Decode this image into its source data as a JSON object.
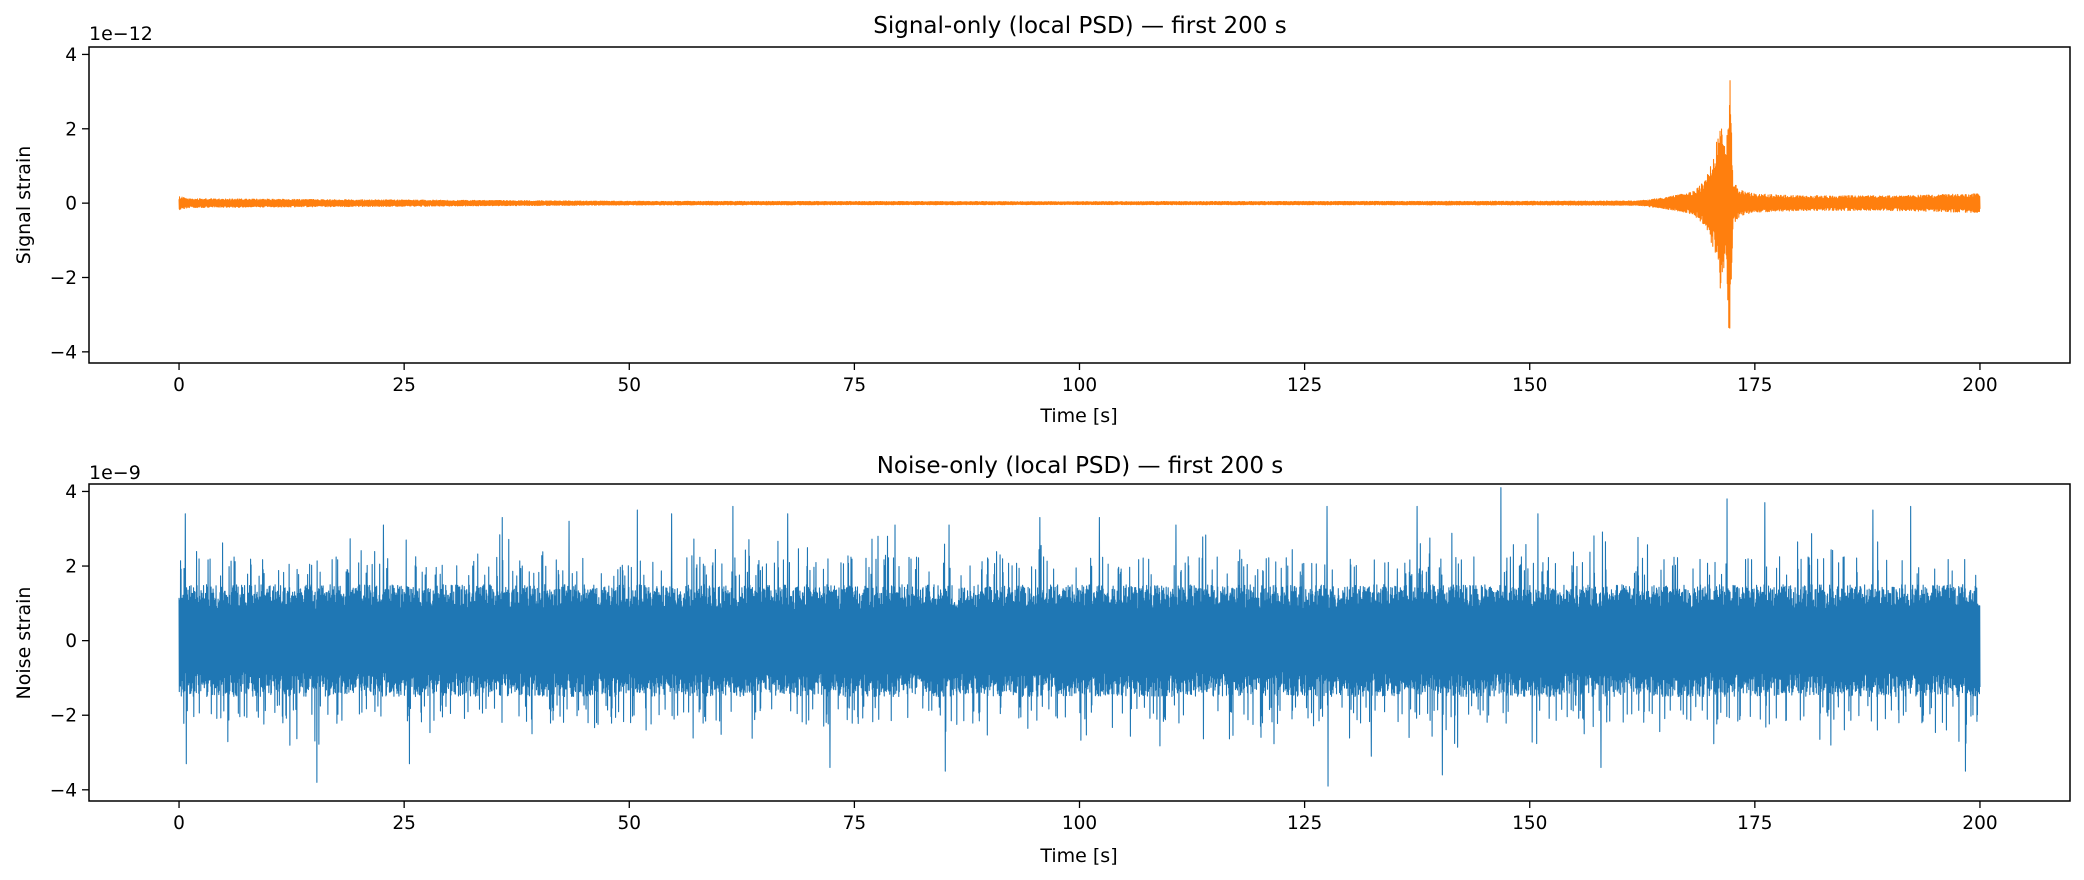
{
  "chart_data": [
    {
      "type": "line",
      "title": "Signal-only (local PSD) — first 200 s",
      "xlabel": "Time [s]",
      "ylabel": "Signal strain",
      "y_offset_label": "1e−12",
      "xlim": [
        -10,
        210
      ],
      "ylim": [
        -4.3,
        4.2
      ],
      "xticks": [
        0,
        25,
        50,
        75,
        100,
        125,
        150,
        175,
        200
      ],
      "xtick_labels": [
        "0",
        "25",
        "50",
        "75",
        "100",
        "125",
        "150",
        "175",
        "200"
      ],
      "yticks": [
        -4,
        -2,
        0,
        2,
        4
      ],
      "ytick_labels": [
        "−4",
        "−2",
        "0",
        "2",
        "4"
      ],
      "grid": false,
      "series": [
        {
          "color": "#ff7f0e",
          "x_range": [
            0,
            200
          ],
          "envelope": {
            "t": [
              0,
              1,
              50,
              100,
              150,
              162,
              165,
              168,
              169.5,
              170.5,
              171.2,
              171.8,
              172.2,
              172.6,
              173.5,
              175,
              180,
              190,
              199,
              200
            ],
            "amp": [
              0.18,
              0.12,
              0.05,
              0.04,
              0.05,
              0.06,
              0.15,
              0.3,
              0.6,
              1.3,
              2.35,
              1.4,
              3.95,
              0.55,
              0.35,
              0.25,
              0.2,
              0.2,
              0.25,
              0.25
            ]
          }
        }
      ]
    },
    {
      "type": "line",
      "title": "Noise-only (local PSD) — first 200 s",
      "xlabel": "Time [s]",
      "ylabel": "Noise strain",
      "y_offset_label": "1e−9",
      "xlim": [
        -10,
        210
      ],
      "ylim": [
        -4.3,
        4.2
      ],
      "xticks": [
        0,
        25,
        50,
        75,
        100,
        125,
        150,
        175,
        200
      ],
      "xtick_labels": [
        "0",
        "25",
        "50",
        "75",
        "100",
        "125",
        "150",
        "175",
        "200"
      ],
      "yticks": [
        -4,
        -2,
        0,
        2,
        4
      ],
      "ytick_labels": [
        "−4",
        "−2",
        "0",
        "2",
        "4"
      ],
      "grid": false,
      "series": [
        {
          "color": "#1f77b4",
          "x_range": [
            0,
            200
          ],
          "typical_amplitude": 1.5,
          "peaks": [
            {
              "t": 0.7,
              "v": 3.4
            },
            {
              "t": 0.8,
              "v": -3.3
            },
            {
              "t": 15.3,
              "v": -3.8
            },
            {
              "t": 22.7,
              "v": 3.1
            },
            {
              "t": 25.6,
              "v": -3.3
            },
            {
              "t": 35.9,
              "v": 3.3
            },
            {
              "t": 43.3,
              "v": 3.2
            },
            {
              "t": 50.9,
              "v": 3.5
            },
            {
              "t": 54.7,
              "v": 3.4
            },
            {
              "t": 61.5,
              "v": 3.6
            },
            {
              "t": 67.6,
              "v": 3.4
            },
            {
              "t": 72.3,
              "v": -3.4
            },
            {
              "t": 79.5,
              "v": 3.1
            },
            {
              "t": 85.1,
              "v": -3.5
            },
            {
              "t": 85.5,
              "v": 3.1
            },
            {
              "t": 95.6,
              "v": 3.3
            },
            {
              "t": 102.2,
              "v": 3.3
            },
            {
              "t": 110.7,
              "v": 3.1
            },
            {
              "t": 127.5,
              "v": 3.6
            },
            {
              "t": 127.6,
              "v": -3.9
            },
            {
              "t": 132.4,
              "v": -3.1
            },
            {
              "t": 137.5,
              "v": 3.6
            },
            {
              "t": 140.3,
              "v": -3.6
            },
            {
              "t": 146.8,
              "v": 4.1
            },
            {
              "t": 150.9,
              "v": 3.4
            },
            {
              "t": 157.9,
              "v": -3.4
            },
            {
              "t": 171.9,
              "v": 3.8
            },
            {
              "t": 176.1,
              "v": 3.7
            },
            {
              "t": 188.1,
              "v": 3.5
            },
            {
              "t": 192.3,
              "v": 3.6
            },
            {
              "t": 198.4,
              "v": -3.5
            }
          ]
        }
      ]
    }
  ]
}
